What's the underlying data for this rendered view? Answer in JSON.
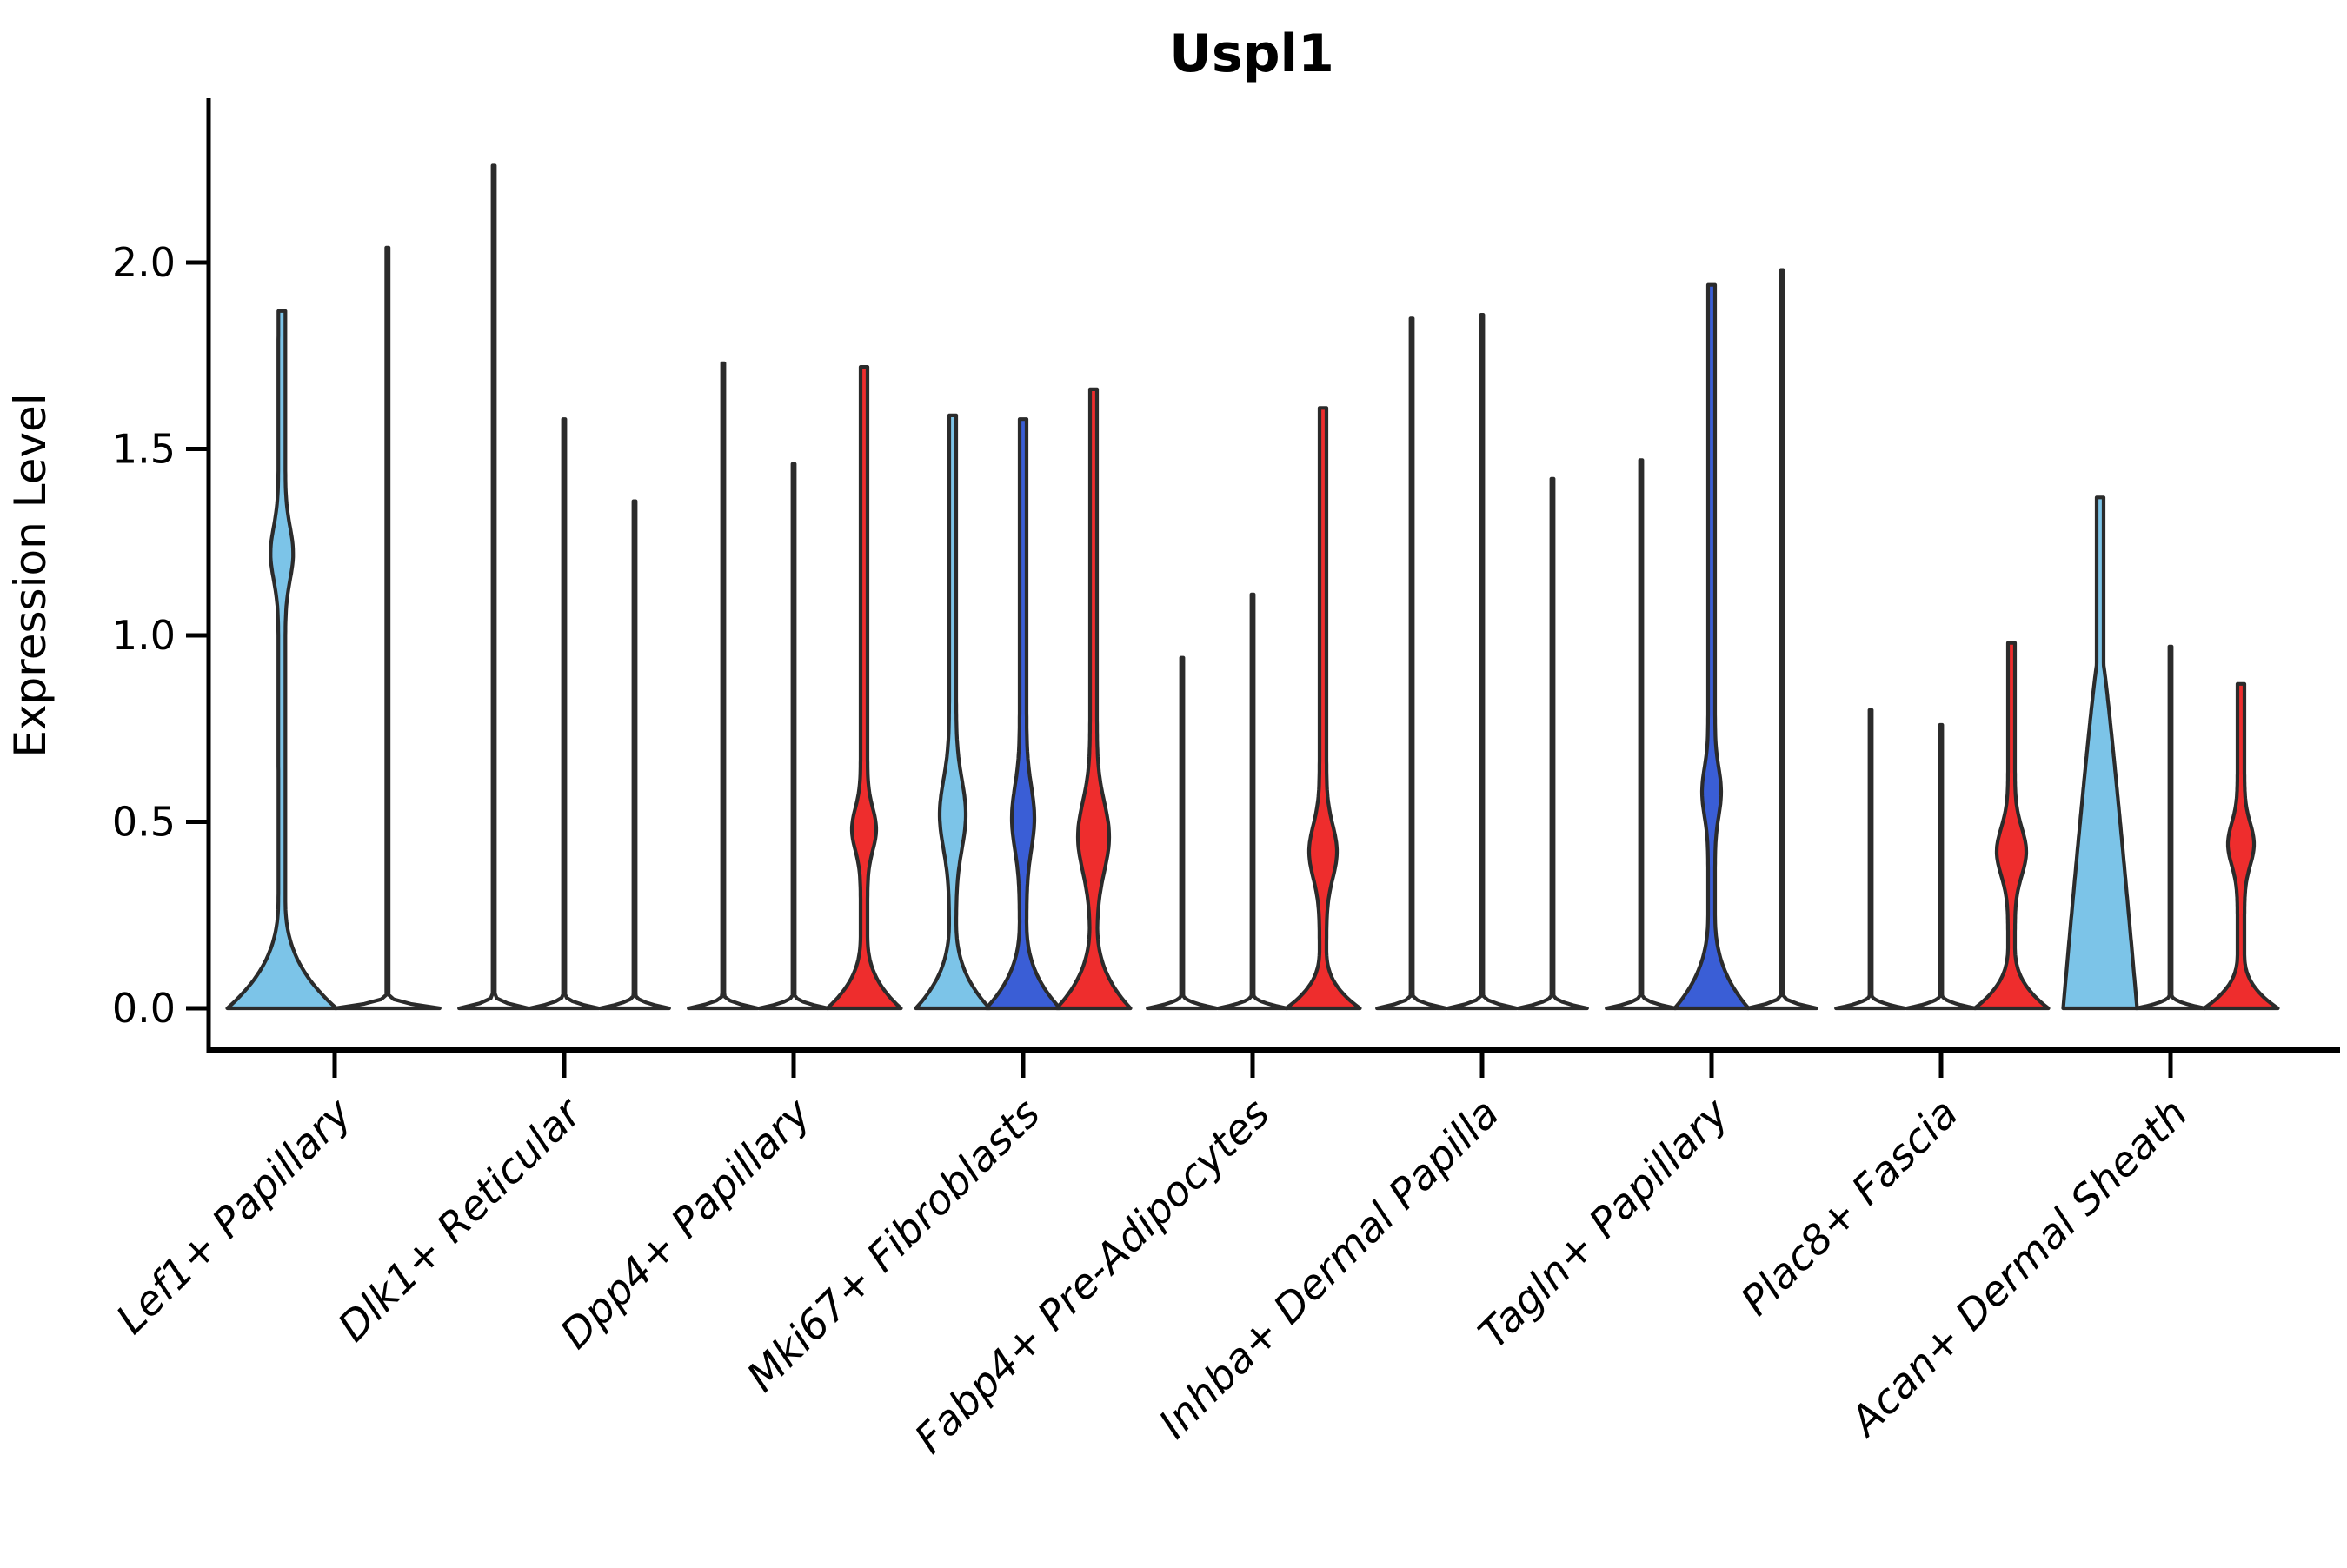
{
  "chart_data": {
    "type": "violin",
    "title": "Uspl1",
    "ylabel": "Expression Level",
    "xlabel": "",
    "ylim": [
      -0.11,
      2.44
    ],
    "grid": false,
    "legend": "none",
    "ytick_labels": [
      "0.0",
      "0.5",
      "1.0",
      "1.5",
      "2.0"
    ],
    "ytick_values": [
      0.0,
      0.5,
      1.0,
      1.5,
      2.0
    ],
    "colors": {
      "lightblue": "#7CC4E8",
      "darkblue": "#3A5ED6",
      "red": "#EE2D2D",
      "outline": "#2B2B2B",
      "text": "#000000"
    },
    "groups": [
      {
        "name": "Lef1+ Papillary",
        "violins": [
          {
            "color": "lightblue",
            "top": 1.87,
            "base_h": 0.3,
            "base_pow": 2.5,
            "lens": {
              "c": 1.22,
              "s": 0.1,
              "hw": 9
            }
          },
          {
            "color": "none",
            "top": 2.04,
            "base_h": 0.035,
            "base_pow": 2,
            "lens": null
          }
        ]
      },
      {
        "name": "Dlk1+ Reticular",
        "violins": [
          {
            "color": "none",
            "top": 2.26,
            "base_h": 0.035,
            "base_pow": 2,
            "lens": null
          },
          {
            "color": "none",
            "top": 1.58,
            "base_h": 0.035,
            "base_pow": 2,
            "lens": null
          },
          {
            "color": "none",
            "top": 1.36,
            "base_h": 0.035,
            "base_pow": 2,
            "lens": null
          }
        ]
      },
      {
        "name": "Dpp4+ Papillary",
        "violins": [
          {
            "color": "none",
            "top": 1.73,
            "base_h": 0.035,
            "base_pow": 2,
            "lens": null
          },
          {
            "color": "none",
            "top": 1.46,
            "base_h": 0.035,
            "base_pow": 2,
            "lens": null
          },
          {
            "color": "red",
            "top": 1.72,
            "base_h": 0.2,
            "base_pow": 2.5,
            "lens": {
              "c": 0.48,
              "s": 0.08,
              "hw": 10
            }
          }
        ]
      },
      {
        "name": "Mki67+ Fibroblasts",
        "violins": [
          {
            "color": "lightblue",
            "top": 1.59,
            "base_h": 0.24,
            "base_pow": 2.5,
            "lens": {
              "c": 0.52,
              "s": 0.13,
              "hw": 11
            }
          },
          {
            "color": "darkblue",
            "top": 1.58,
            "base_h": 0.24,
            "base_pow": 2.5,
            "lens": {
              "c": 0.51,
              "s": 0.12,
              "hw": 9
            }
          },
          {
            "color": "red",
            "top": 1.66,
            "base_h": 0.24,
            "base_pow": 2.5,
            "lens": {
              "c": 0.46,
              "s": 0.13,
              "hw": 14
            }
          }
        ]
      },
      {
        "name": "Fabp4+ Pre-Adipocytes",
        "violins": [
          {
            "color": "none",
            "top": 0.94,
            "base_h": 0.035,
            "base_pow": 2,
            "lens": null
          },
          {
            "color": "none",
            "top": 1.11,
            "base_h": 0.035,
            "base_pow": 2,
            "lens": null
          },
          {
            "color": "red",
            "top": 1.61,
            "base_h": 0.16,
            "base_pow": 2.5,
            "lens": {
              "c": 0.42,
              "s": 0.1,
              "hw": 12
            }
          }
        ]
      },
      {
        "name": "Inhba+ Dermal Papilla",
        "violins": [
          {
            "color": "none",
            "top": 1.85,
            "base_h": 0.035,
            "base_pow": 2,
            "lens": null
          },
          {
            "color": "none",
            "top": 1.86,
            "base_h": 0.035,
            "base_pow": 2,
            "lens": null
          },
          {
            "color": "none",
            "top": 1.42,
            "base_h": 0.035,
            "base_pow": 2,
            "lens": null
          }
        ]
      },
      {
        "name": "Tagln+ Papillary",
        "violins": [
          {
            "color": "none",
            "top": 1.47,
            "base_h": 0.035,
            "base_pow": 2,
            "lens": null
          },
          {
            "color": "darkblue",
            "top": 1.94,
            "base_h": 0.26,
            "base_pow": 2.5,
            "lens": {
              "c": 0.58,
              "s": 0.09,
              "hw": 7
            }
          },
          {
            "color": "none",
            "top": 1.98,
            "base_h": 0.035,
            "base_pow": 2,
            "lens": null
          }
        ]
      },
      {
        "name": "Plac8+ Fascia",
        "violins": [
          {
            "color": "none",
            "top": 0.8,
            "base_h": 0.035,
            "base_pow": 2,
            "lens": null
          },
          {
            "color": "none",
            "top": 0.76,
            "base_h": 0.035,
            "base_pow": 2,
            "lens": null
          },
          {
            "color": "red",
            "top": 0.98,
            "base_h": 0.17,
            "base_pow": 2.5,
            "lens": {
              "c": 0.42,
              "s": 0.09,
              "hw": 13
            }
          }
        ]
      },
      {
        "name": "Acan+ Dermal Sheath",
        "violins": [
          {
            "color": "lightblue",
            "top": 1.37,
            "base_h": 0.92,
            "base_pow": 0.9,
            "lens": null
          },
          {
            "color": "none",
            "top": 0.97,
            "base_h": 0.035,
            "base_pow": 2,
            "lens": null
          },
          {
            "color": "red",
            "top": 0.87,
            "base_h": 0.15,
            "base_pow": 2.5,
            "lens": {
              "c": 0.44,
              "s": 0.08,
              "hw": 11
            }
          }
        ]
      }
    ]
  }
}
